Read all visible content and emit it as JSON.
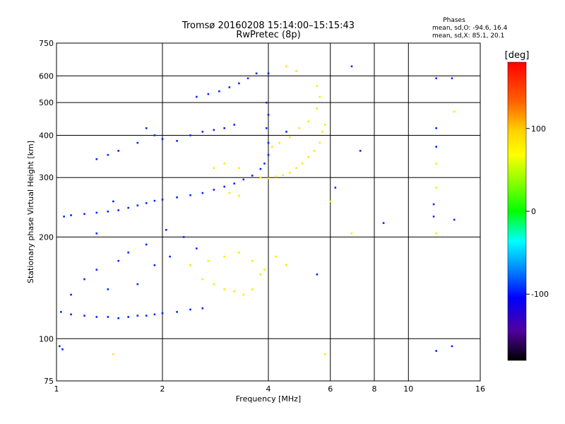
{
  "chart_data": {
    "type": "scatter",
    "title": "Tromsø 20160208 15:14:00–15:15:43",
    "subtitle": "RwPretec (8p)",
    "xlabel": "Frequency [MHz]",
    "ylabel": "Stationary phase Virtual Height [km]",
    "x_scale": "log2",
    "y_scale": "log",
    "xlim": [
      1,
      16
    ],
    "ylim": [
      75,
      750
    ],
    "x_ticks": [
      1,
      2,
      4,
      6,
      8,
      10,
      16
    ],
    "x_gridlines": [
      2,
      4,
      6,
      8,
      10
    ],
    "y_ticks": [
      75,
      100,
      200,
      300,
      400,
      500,
      600,
      750
    ],
    "y_gridlines": [
      100,
      200,
      300,
      400,
      500,
      600
    ],
    "grid": true,
    "stats": {
      "heading": "Phases",
      "line1": "mean, sd,O:  -94.6, 16.4",
      "line2": "mean, sd,X:   85.1, 20.1"
    },
    "colorbar": {
      "label": "[deg]",
      "range": [
        -180,
        180
      ],
      "ticks": [
        100,
        0,
        -100
      ],
      "tick_labels": [
        "100",
        "0",
        "-100"
      ]
    },
    "series": [
      {
        "phase": -94.6,
        "points": [
          [
            1.04,
            93
          ],
          [
            1.02,
            95
          ],
          [
            1.03,
            120
          ],
          [
            1.1,
            118
          ],
          [
            1.2,
            117
          ],
          [
            1.3,
            116
          ],
          [
            1.4,
            116
          ],
          [
            1.5,
            115
          ],
          [
            1.6,
            116
          ],
          [
            1.7,
            117
          ],
          [
            1.8,
            117
          ],
          [
            1.9,
            118
          ],
          [
            2.0,
            119
          ],
          [
            2.2,
            120
          ],
          [
            2.4,
            122
          ],
          [
            2.6,
            123
          ],
          [
            1.1,
            135
          ],
          [
            1.2,
            150
          ],
          [
            1.3,
            160
          ],
          [
            1.4,
            140
          ],
          [
            1.5,
            170
          ],
          [
            1.6,
            180
          ],
          [
            1.7,
            145
          ],
          [
            1.8,
            190
          ],
          [
            1.9,
            165
          ],
          [
            2.1,
            175
          ],
          [
            2.3,
            200
          ],
          [
            2.5,
            185
          ],
          [
            1.05,
            230
          ],
          [
            1.1,
            232
          ],
          [
            1.2,
            234
          ],
          [
            1.3,
            236
          ],
          [
            1.4,
            238
          ],
          [
            1.5,
            240
          ],
          [
            1.6,
            244
          ],
          [
            1.7,
            248
          ],
          [
            1.8,
            252
          ],
          [
            1.9,
            256
          ],
          [
            2.0,
            258
          ],
          [
            2.2,
            262
          ],
          [
            2.4,
            266
          ],
          [
            2.6,
            270
          ],
          [
            2.8,
            276
          ],
          [
            3.0,
            282
          ],
          [
            3.2,
            288
          ],
          [
            3.4,
            296
          ],
          [
            3.6,
            304
          ],
          [
            3.8,
            318
          ],
          [
            3.9,
            330
          ],
          [
            4.0,
            350
          ],
          [
            4.0,
            380
          ],
          [
            3.95,
            420
          ],
          [
            4.0,
            460
          ],
          [
            3.95,
            500
          ],
          [
            1.3,
            340
          ],
          [
            1.4,
            350
          ],
          [
            1.5,
            360
          ],
          [
            1.7,
            380
          ],
          [
            1.8,
            420
          ],
          [
            1.9,
            400
          ],
          [
            2.0,
            390
          ],
          [
            2.2,
            385
          ],
          [
            2.4,
            400
          ],
          [
            2.6,
            410
          ],
          [
            2.8,
            415
          ],
          [
            3.0,
            420
          ],
          [
            3.2,
            430
          ],
          [
            2.5,
            520
          ],
          [
            2.7,
            530
          ],
          [
            2.9,
            540
          ],
          [
            3.1,
            555
          ],
          [
            3.3,
            570
          ],
          [
            3.5,
            590
          ],
          [
            3.7,
            610
          ],
          [
            4.0,
            610
          ],
          [
            6.9,
            640
          ],
          [
            12.0,
            590
          ],
          [
            13.3,
            590
          ],
          [
            12.0,
            420
          ],
          [
            12.0,
            370
          ],
          [
            11.8,
            250
          ],
          [
            11.8,
            230
          ],
          [
            13.5,
            225
          ],
          [
            13.3,
            95
          ],
          [
            12.0,
            92
          ],
          [
            6.2,
            280
          ],
          [
            7.3,
            360
          ],
          [
            8.5,
            220
          ],
          [
            5.5,
            155
          ],
          [
            4.5,
            410
          ],
          [
            1.3,
            205
          ],
          [
            2.05,
            210
          ],
          [
            1.45,
            255
          ]
        ]
      },
      {
        "phase": 85.1,
        "points": [
          [
            2.6,
            150
          ],
          [
            2.8,
            145
          ],
          [
            3.0,
            140
          ],
          [
            3.2,
            138
          ],
          [
            3.4,
            135
          ],
          [
            3.6,
            140
          ],
          [
            3.8,
            155
          ],
          [
            2.4,
            165
          ],
          [
            2.7,
            170
          ],
          [
            3.0,
            175
          ],
          [
            3.3,
            180
          ],
          [
            3.6,
            170
          ],
          [
            3.9,
            160
          ],
          [
            4.2,
            175
          ],
          [
            4.5,
            165
          ],
          [
            3.8,
            300
          ],
          [
            4.0,
            298
          ],
          [
            4.2,
            302
          ],
          [
            4.4,
            305
          ],
          [
            4.6,
            310
          ],
          [
            4.8,
            320
          ],
          [
            5.0,
            330
          ],
          [
            5.2,
            345
          ],
          [
            5.4,
            360
          ],
          [
            5.6,
            380
          ],
          [
            5.7,
            410
          ],
          [
            5.8,
            430
          ],
          [
            4.1,
            370
          ],
          [
            4.3,
            380
          ],
          [
            4.6,
            395
          ],
          [
            4.9,
            420
          ],
          [
            5.2,
            440
          ],
          [
            5.5,
            480
          ],
          [
            5.6,
            520
          ],
          [
            5.5,
            560
          ],
          [
            4.5,
            640
          ],
          [
            4.8,
            620
          ],
          [
            3.3,
            320
          ],
          [
            3.0,
            330
          ],
          [
            2.8,
            320
          ],
          [
            3.1,
            270
          ],
          [
            3.3,
            265
          ],
          [
            12.0,
            280
          ],
          [
            12.0,
            330
          ],
          [
            13.5,
            470
          ],
          [
            12.0,
            205
          ],
          [
            6.9,
            205
          ],
          [
            5.8,
            90
          ],
          [
            1.45,
            90
          ],
          [
            6.0,
            255
          ]
        ]
      }
    ]
  }
}
